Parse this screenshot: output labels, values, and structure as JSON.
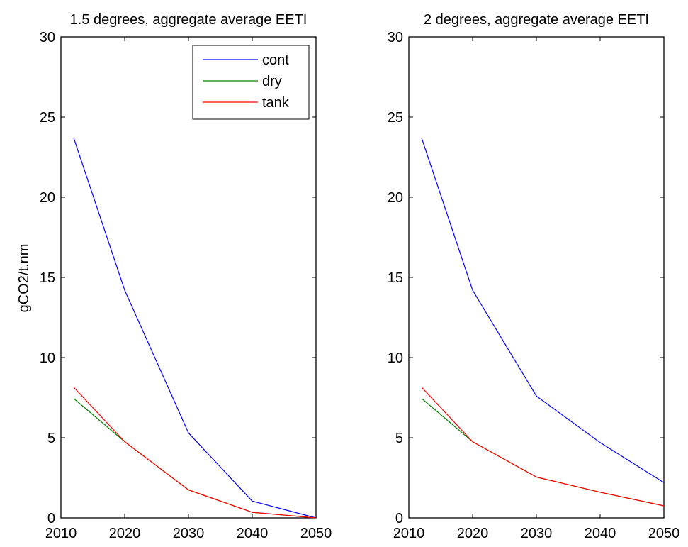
{
  "ylabel": "gCO2/t.nm",
  "chart_data": [
    {
      "type": "line",
      "title": "1.5 degrees, aggregate average EETI",
      "xlabel": "",
      "ylabel": "gCO2/t.nm",
      "xlim": [
        2010,
        2050
      ],
      "ylim": [
        0,
        30
      ],
      "xticks": [
        2010,
        2020,
        2030,
        2040,
        2050
      ],
      "yticks": [
        0,
        5,
        10,
        15,
        20,
        25,
        30
      ],
      "x": [
        2012,
        2020,
        2030,
        2040,
        2050
      ],
      "grid": false,
      "legend_position": "top-right",
      "series": [
        {
          "name": "cont",
          "color": "#0000ff",
          "values": [
            23.7,
            14.2,
            5.3,
            1.05,
            0.0
          ]
        },
        {
          "name": "dry",
          "color": "#008000",
          "values": [
            7.45,
            4.75,
            1.75,
            0.35,
            0.0
          ]
        },
        {
          "name": "tank",
          "color": "#ff0000",
          "values": [
            8.15,
            4.75,
            1.75,
            0.35,
            0.0
          ]
        }
      ]
    },
    {
      "type": "line",
      "title": "2 degrees, aggregate average EETI",
      "xlabel": "",
      "ylabel": "",
      "xlim": [
        2010,
        2050
      ],
      "ylim": [
        0,
        30
      ],
      "xticks": [
        2010,
        2020,
        2030,
        2040,
        2050
      ],
      "yticks": [
        0,
        5,
        10,
        15,
        20,
        25,
        30
      ],
      "x": [
        2012,
        2020,
        2030,
        2040,
        2050
      ],
      "grid": false,
      "legend_position": "none",
      "series": [
        {
          "name": "cont",
          "color": "#0000ff",
          "values": [
            23.7,
            14.2,
            7.6,
            4.7,
            2.2
          ]
        },
        {
          "name": "dry",
          "color": "#008000",
          "values": [
            7.45,
            4.75,
            2.55,
            1.6,
            0.75
          ]
        },
        {
          "name": "tank",
          "color": "#ff0000",
          "values": [
            8.15,
            4.75,
            2.55,
            1.6,
            0.75
          ]
        }
      ]
    }
  ]
}
